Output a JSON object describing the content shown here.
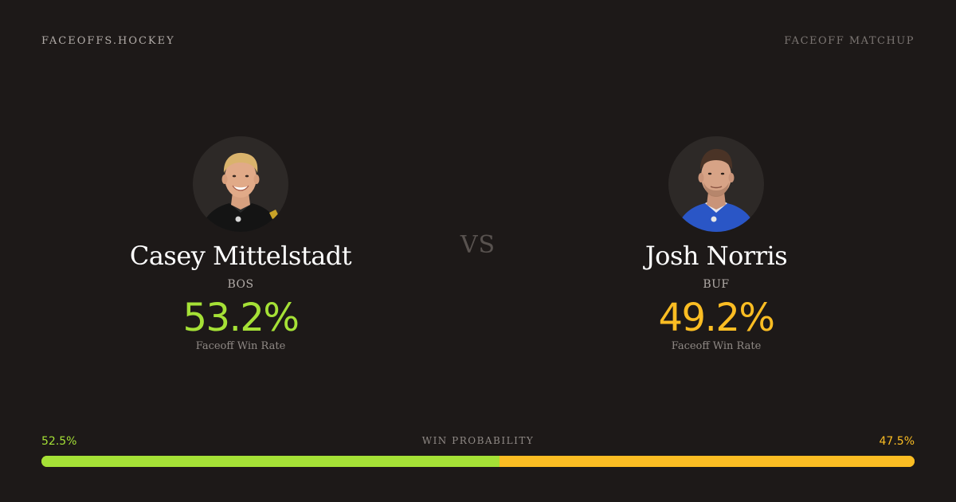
{
  "header": {
    "brand": "FACEOFFS.HOCKEY",
    "section": "FACEOFF MATCHUP"
  },
  "vs_label": "VS",
  "players": [
    {
      "name": "Casey Mittelstadt",
      "team": "BOS",
      "win_rate": "53.2%",
      "win_rate_label": "Faceoff Win Rate",
      "color": "#a5e136",
      "avatar_icon": "player-headshot-black-jersey"
    },
    {
      "name": "Josh Norris",
      "team": "BUF",
      "win_rate": "49.2%",
      "win_rate_label": "Faceoff Win Rate",
      "color": "#fbbd23",
      "avatar_icon": "player-headshot-blue-jersey"
    }
  ],
  "win_probability": {
    "title": "WIN PROBABILITY",
    "left_label": "52.5%",
    "right_label": "47.5%",
    "left_value": 52.5,
    "right_value": 47.5
  },
  "colors": {
    "background": "#1d1918",
    "left_accent": "#a5e136",
    "right_accent": "#fbbd23"
  }
}
